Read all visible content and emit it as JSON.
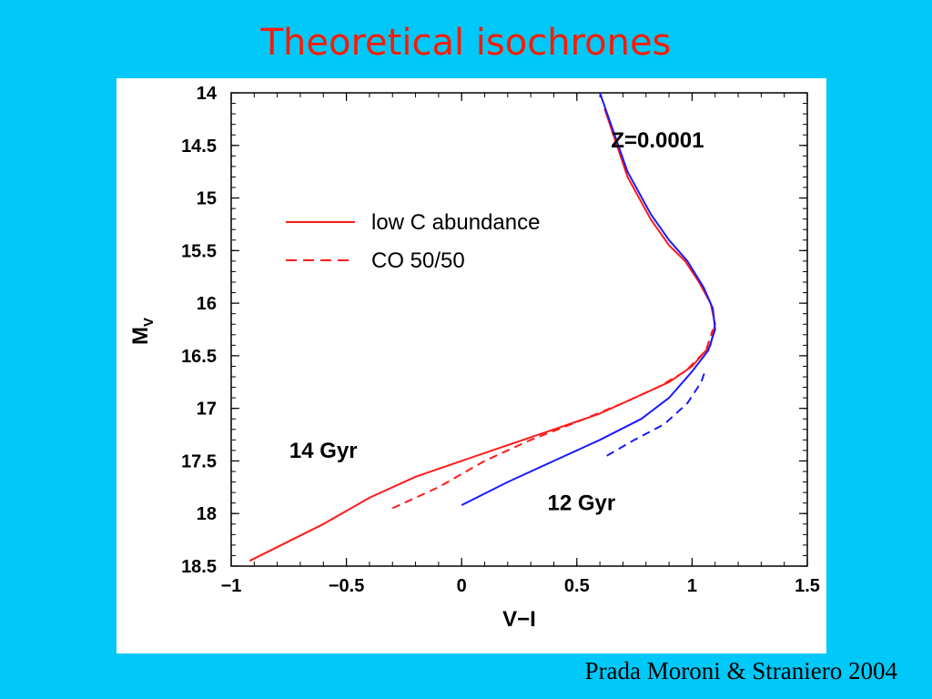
{
  "slide": {
    "title": "Theoretical isochrones",
    "citation": "Prada Moroni & Straniero 2004"
  },
  "colors": {
    "background": "#00c8f8",
    "title": "#ff1a00",
    "red": "#ff1a1a",
    "blue": "#1a1aff"
  },
  "chart_data": {
    "type": "line",
    "xlabel": "V−I",
    "ylabel_main": "M",
    "ylabel_sub": "V",
    "xlim": [
      -1,
      1.5
    ],
    "ylim": [
      14,
      18.5
    ],
    "y_inverted": true,
    "xticks": [
      -1,
      -0.5,
      0,
      0.5,
      1,
      1.5
    ],
    "xtick_labels": [
      "−1",
      "−0.5",
      "0",
      "0.5",
      "1",
      "1.5"
    ],
    "yticks": [
      14,
      14.5,
      15,
      15.5,
      16,
      16.5,
      17,
      17.5,
      18,
      18.5
    ],
    "ytick_labels": [
      "14",
      "14.5",
      "15",
      "15.5",
      "16",
      "16.5",
      "17",
      "17.5",
      "18",
      "18.5"
    ],
    "grid": false,
    "legend": {
      "position": "upper-left",
      "entries": [
        {
          "label": "low C abundance",
          "style": "solid",
          "color": "#ff1a1a"
        },
        {
          "label": "CO 50/50",
          "style": "dashed",
          "color": "#ff1a1a"
        }
      ]
    },
    "annotations": [
      {
        "text": "Z=0.0001",
        "x": 0.85,
        "y": 14.45
      },
      {
        "text": "14 Gyr",
        "x": -0.6,
        "y": 17.4
      },
      {
        "text": "12 Gyr",
        "x": 0.52,
        "y": 17.9
      }
    ],
    "series": [
      {
        "age": "14 Gyr",
        "composition": "low C abundance",
        "color": "#ff1a1a",
        "style": "solid",
        "points": [
          [
            -0.92,
            18.45
          ],
          [
            -0.6,
            18.1
          ],
          [
            -0.4,
            17.85
          ],
          [
            -0.2,
            17.65
          ],
          [
            0,
            17.5
          ],
          [
            0.2,
            17.35
          ],
          [
            0.4,
            17.2
          ],
          [
            0.6,
            17.05
          ],
          [
            0.75,
            16.9
          ],
          [
            0.9,
            16.75
          ],
          [
            1.0,
            16.6
          ],
          [
            1.08,
            16.4
          ],
          [
            1.1,
            16.2
          ],
          [
            1.08,
            16.0
          ],
          [
            1.03,
            15.8
          ],
          [
            0.97,
            15.6
          ],
          [
            0.9,
            15.45
          ],
          [
            0.82,
            15.2
          ],
          [
            0.72,
            14.8
          ],
          [
            0.62,
            14.15
          ]
        ]
      },
      {
        "age": "14 Gyr",
        "composition": "CO 50/50",
        "color": "#ff1a1a",
        "style": "dashed",
        "points": [
          [
            -0.3,
            17.95
          ],
          [
            -0.1,
            17.75
          ],
          [
            0.1,
            17.5
          ],
          [
            0.3,
            17.3
          ],
          [
            0.5,
            17.13
          ],
          [
            0.7,
            16.95
          ],
          [
            0.85,
            16.8
          ],
          [
            0.97,
            16.65
          ],
          [
            1.06,
            16.45
          ],
          [
            1.09,
            16.25
          ]
        ]
      },
      {
        "age": "12 Gyr",
        "composition": "low C abundance",
        "color": "#1a1aff",
        "style": "solid",
        "points": [
          [
            0,
            17.92
          ],
          [
            0.2,
            17.7
          ],
          [
            0.4,
            17.5
          ],
          [
            0.6,
            17.3
          ],
          [
            0.78,
            17.1
          ],
          [
            0.9,
            16.9
          ],
          [
            1.0,
            16.65
          ],
          [
            1.07,
            16.45
          ],
          [
            1.1,
            16.25
          ],
          [
            1.09,
            16.05
          ],
          [
            1.05,
            15.85
          ],
          [
            0.98,
            15.6
          ],
          [
            0.9,
            15.4
          ],
          [
            0.82,
            15.15
          ],
          [
            0.72,
            14.75
          ],
          [
            0.6,
            14.0
          ]
        ]
      },
      {
        "age": "12 Gyr",
        "composition": "CO 50/50",
        "color": "#1a1aff",
        "style": "dashed",
        "points": [
          [
            0.63,
            17.45
          ],
          [
            0.75,
            17.3
          ],
          [
            0.88,
            17.15
          ],
          [
            0.98,
            16.95
          ],
          [
            1.04,
            16.75
          ],
          [
            1.06,
            16.62
          ]
        ]
      }
    ]
  }
}
